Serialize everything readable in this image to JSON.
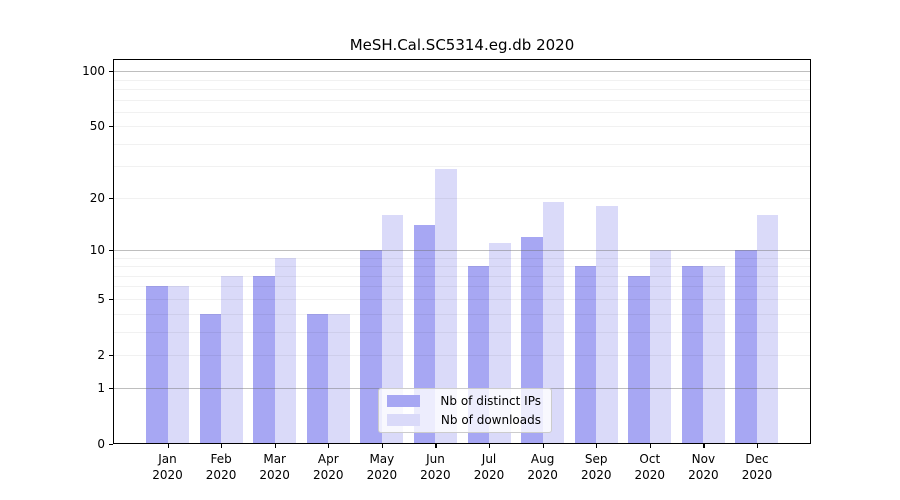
{
  "title": "MeSH.Cal.SC5314.eg.db 2020",
  "chart_data": {
    "type": "bar",
    "title": "MeSH.Cal.SC5314.eg.db 2020",
    "categories": [
      "Jan 2020",
      "Feb 2020",
      "Mar 2020",
      "Apr 2020",
      "May 2020",
      "Jun 2020",
      "Jul 2020",
      "Aug 2020",
      "Sep 2020",
      "Oct 2020",
      "Nov 2020",
      "Dec 2020"
    ],
    "months": [
      "Jan",
      "Feb",
      "Mar",
      "Apr",
      "May",
      "Jun",
      "Jul",
      "Aug",
      "Sep",
      "Oct",
      "Nov",
      "Dec"
    ],
    "year": "2020",
    "series": [
      {
        "name": "Nb of distinct IPs",
        "color": "#a7a7f3",
        "values": [
          6,
          4,
          7,
          4,
          10,
          14,
          8,
          12,
          8,
          7,
          8,
          10
        ]
      },
      {
        "name": "Nb of downloads",
        "color": "#dadaf9",
        "values": [
          6,
          7,
          9,
          4,
          16,
          29,
          11,
          19,
          18,
          10,
          8,
          16
        ]
      }
    ],
    "yscale": "log1p",
    "ylabel": "",
    "xlabel": "",
    "yticks": [
      0,
      1,
      2,
      5,
      10,
      20,
      50,
      100
    ],
    "major_grid_values": [
      1,
      10,
      100
    ],
    "minor_grid_values": [
      2,
      3,
      4,
      5,
      6,
      7,
      8,
      9,
      20,
      30,
      40,
      50,
      60,
      70,
      80,
      90
    ],
    "ylim": [
      0,
      117
    ],
    "grid": true,
    "legend_position": "lower center"
  },
  "colors": {
    "ips_bar": "#a7a7f3",
    "downloads_bar": "#dadaf9",
    "axis": "#000000",
    "major_grid": "#b4b4b4",
    "minor_grid": "#ededed",
    "background": "#ffffff"
  }
}
